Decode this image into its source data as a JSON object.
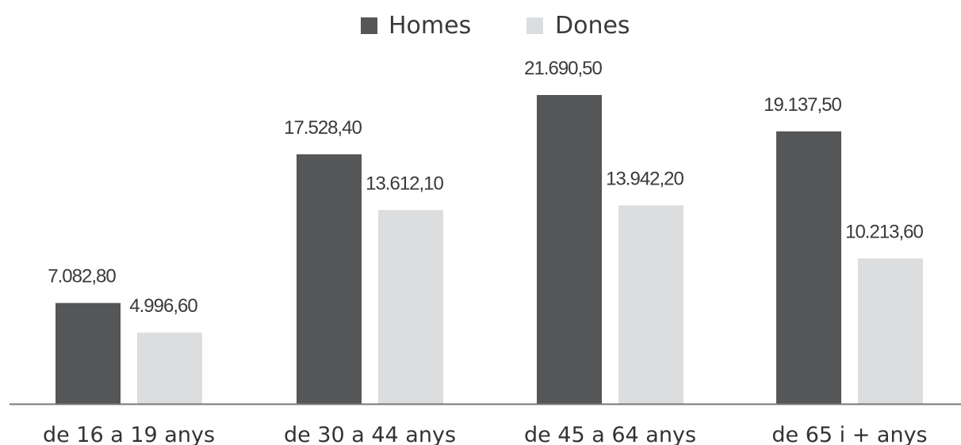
{
  "chart_data": {
    "type": "bar",
    "categories": [
      "de 16 a 19 anys",
      "de 30 a 44 anys",
      "de 45 a 64 anys",
      "de 65 i + anys"
    ],
    "series": [
      {
        "name": "Homes",
        "color": "#555657",
        "values": [
          7082.8,
          17528.4,
          21690.5,
          19137.5
        ],
        "labels": [
          "7.082,80",
          "17.528,40",
          "21.690,50",
          "19.137,50"
        ]
      },
      {
        "name": "Dones",
        "color": "#dcddde",
        "values": [
          4996.6,
          13612.1,
          13942.2,
          10213.6
        ],
        "labels": [
          "4.996,60",
          "13.612,10",
          "13.942,20",
          "10.213,60"
        ]
      }
    ],
    "title": "",
    "xlabel": "",
    "ylabel": "",
    "ylim": [
      0,
      21690.5
    ],
    "grid": false,
    "legend": "top-center",
    "axis_color": "#777777"
  }
}
